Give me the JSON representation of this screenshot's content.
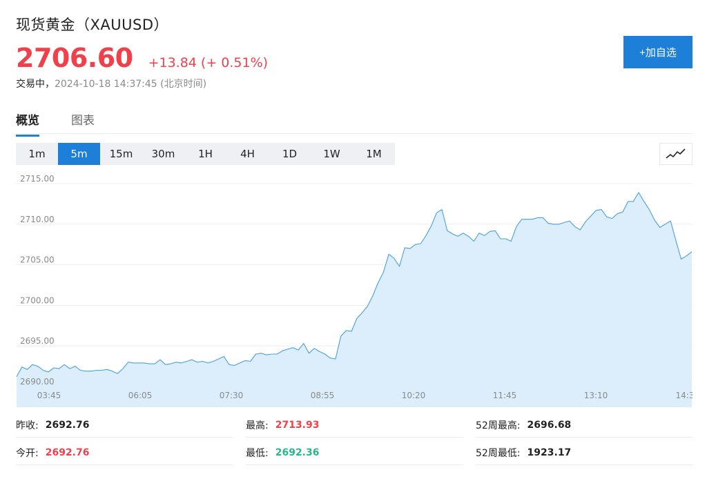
{
  "header": {
    "title": "现货黄金（XAUUSD）",
    "price": "2706.60",
    "change": "+13.84 (+ 0.51%)",
    "status_label": "交易中，",
    "timestamp": "2024-10-18 14:37:45 (北京时间)"
  },
  "add_button": {
    "label": "+加自选"
  },
  "tabs": [
    {
      "label": "概览",
      "active": true
    },
    {
      "label": "图表",
      "active": false
    }
  ],
  "periods": [
    {
      "label": "1m",
      "active": false
    },
    {
      "label": "5m",
      "active": true
    },
    {
      "label": "15m",
      "active": false
    },
    {
      "label": "30m",
      "active": false
    },
    {
      "label": "1H",
      "active": false
    },
    {
      "label": "4H",
      "active": false
    },
    {
      "label": "1D",
      "active": false
    },
    {
      "label": "1W",
      "active": false
    },
    {
      "label": "1M",
      "active": false
    }
  ],
  "chart_type_icon": "line-chart-icon",
  "chart_data": {
    "type": "area",
    "title": "",
    "xlabel": "",
    "ylabel": "",
    "ylim": [
      2690,
      2716
    ],
    "y_ticks": [
      2715.0,
      2710.0,
      2705.0,
      2700.0,
      2695.0,
      2690.0
    ],
    "y_tick_labels": [
      "2715.00",
      "2710.00",
      "2705.00",
      "2700.00",
      "2695.00",
      "2690.00"
    ],
    "x_ticks": [
      "03:45",
      "06:05",
      "07:30",
      "08:55",
      "10:20",
      "11:45",
      "13:10",
      "14:3"
    ],
    "grid": true,
    "line_color": "#4a9fe0",
    "fill_color": "#dcedfb",
    "series": [
      {
        "values": [
          2691.2,
          2692.4,
          2692.1,
          2692.7,
          2692.5,
          2692.0,
          2691.8,
          2692.3,
          2692.2,
          2692.7,
          2692.2,
          2692.5,
          2692.0,
          2691.9,
          2691.9,
          2692.0,
          2692.0,
          2692.1,
          2691.9,
          2691.6,
          2692.2,
          2693.0,
          2692.9,
          2692.9,
          2692.9,
          2692.8,
          2692.8,
          2693.3,
          2692.7,
          2692.8,
          2693.0,
          2692.9,
          2693.1,
          2693.3,
          2693.0,
          2693.1,
          2692.9,
          2693.1,
          2693.4,
          2693.7,
          2692.7,
          2692.6,
          2692.9,
          2693.2,
          2693.1,
          2694.0,
          2694.1,
          2693.9,
          2694.0,
          2694.0,
          2694.4,
          2694.6,
          2694.8,
          2694.5,
          2695.3,
          2694.1,
          2694.7,
          2694.3,
          2694.0,
          2693.5,
          2693.4,
          2696.2,
          2696.9,
          2696.8,
          2698.4,
          2699.1,
          2699.9,
          2701.2,
          2702.8,
          2704.1,
          2706.3,
          2705.8,
          2704.8,
          2707.1,
          2707.0,
          2707.5,
          2707.6,
          2708.6,
          2709.8,
          2711.4,
          2711.8,
          2709.2,
          2708.8,
          2708.5,
          2708.9,
          2708.5,
          2707.9,
          2708.9,
          2708.6,
          2709.1,
          2709.2,
          2708.2,
          2708.2,
          2707.9,
          2709.7,
          2710.6,
          2710.6,
          2710.6,
          2710.8,
          2710.8,
          2710.1,
          2710.0,
          2710.0,
          2710.2,
          2710.4,
          2709.7,
          2709.3,
          2710.3,
          2711.0,
          2711.7,
          2711.8,
          2710.9,
          2710.7,
          2711.3,
          2711.5,
          2712.8,
          2712.8,
          2713.9,
          2712.8,
          2711.8,
          2710.5,
          2709.6,
          2710.0,
          2710.4,
          2708.0,
          2705.7,
          2706.1,
          2706.6
        ]
      }
    ]
  },
  "stats": [
    [
      {
        "label": "昨收:",
        "value": "2692.76",
        "tone": "dark"
      },
      {
        "label": "最高:",
        "value": "2713.93",
        "tone": "red"
      },
      {
        "label": "52周最高:",
        "value": "2696.68",
        "tone": "dark"
      }
    ],
    [
      {
        "label": "今开:",
        "value": "2692.76",
        "tone": "red"
      },
      {
        "label": "最低:",
        "value": "2692.36",
        "tone": "green"
      },
      {
        "label": "52周最低:",
        "value": "1923.17",
        "tone": "dark"
      }
    ]
  ]
}
